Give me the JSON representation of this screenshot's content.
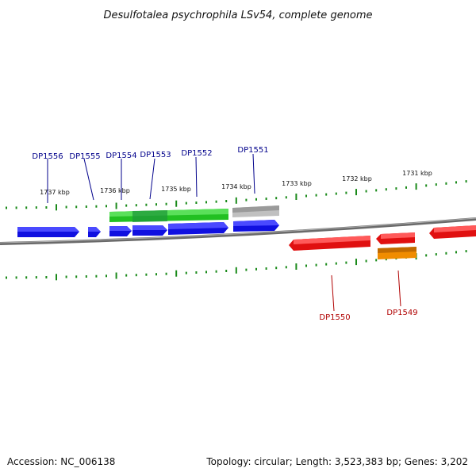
{
  "header": {
    "title": "Desulfotalea psychrophila LSv54, complete genome"
  },
  "footer": {
    "accession": "Accession: NC_006138",
    "topology": "Topology: circular; Length: 3,523,383 bp; Genes: 3,202"
  },
  "ticks": {
    "labels": [
      "1737 kbp",
      "1736 kbp",
      "1735 kbp",
      "1734 kbp",
      "1733 kbp",
      "1732 kbp",
      "1731 kbp"
    ],
    "color": "#1a8a1a"
  },
  "genes": {
    "upper_labels": [
      "DP1556",
      "DP1555",
      "DP1554",
      "DP1553",
      "DP1552",
      "DP1551"
    ],
    "lower_labels": [
      "DP1550",
      "DP1549"
    ],
    "upper_label_color": "#00008b",
    "lower_label_color": "#b00000",
    "colors": {
      "forward_cds": "#1010e0",
      "rna": "#22c022",
      "pseudo": "#c0c0c0",
      "reverse_cds": "#e01010",
      "reverse_other": "#f08c00",
      "backbone": "#808080"
    }
  }
}
